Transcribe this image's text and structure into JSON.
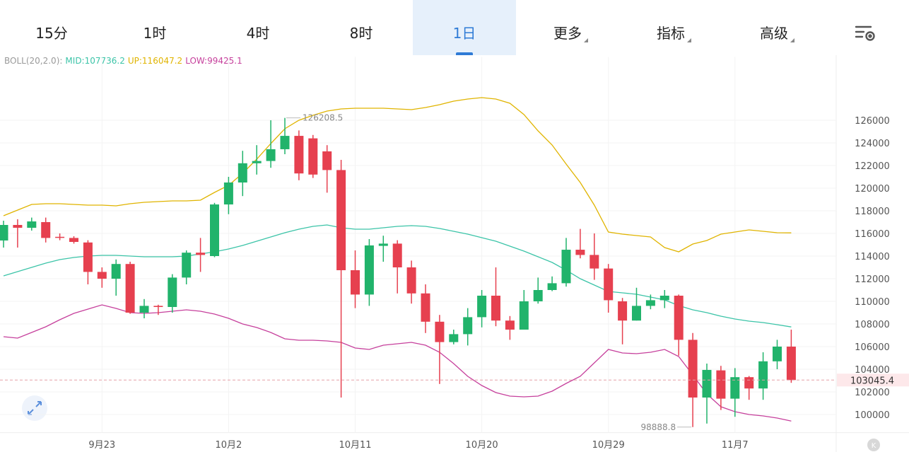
{
  "tabs": [
    "15分",
    "1时",
    "4时",
    "8时",
    "1日",
    "更多",
    "指标",
    "高级"
  ],
  "active_tab": 4,
  "dropdown_tabs": [
    5,
    6,
    7
  ],
  "chart_data": {
    "type": "candlestick",
    "indicator": "BOLL(20,2.0):",
    "categories": [
      null,
      null,
      null,
      null,
      null,
      null,
      null,
      "9月23",
      null,
      null,
      null,
      null,
      null,
      null,
      null,
      null,
      "10月2",
      null,
      null,
      null,
      null,
      null,
      null,
      null,
      null,
      "10月11",
      null,
      null,
      null,
      null,
      null,
      null,
      null,
      null,
      "10月20",
      null,
      null,
      null,
      null,
      null,
      null,
      null,
      null,
      "10月29",
      null,
      null,
      null,
      null,
      null,
      null,
      null,
      null,
      "11月7",
      null,
      null,
      null,
      null
    ],
    "open": [
      115375,
      116750,
      116500,
      117000,
      115700,
      115600,
      115200,
      112600,
      112000,
      113300,
      109000,
      109600,
      109500,
      112100,
      114300,
      114000,
      118560,
      120500,
      122200,
      122400,
      123440,
      124620,
      124400,
      123250,
      121600,
      112750,
      110600,
      114900,
      115100,
      113000,
      110700,
      108200,
      106400,
      107100,
      108600,
      110500,
      108300,
      107500,
      110000,
      111000,
      111600,
      114560,
      114100,
      112900,
      110000,
      108300,
      109600,
      110100,
      110500,
      106600,
      101500,
      103900,
      101400,
      103300,
      102300,
      104700,
      106000
    ],
    "close": [
      116750,
      116500,
      117060,
      115600,
      115650,
      115250,
      112600,
      112000,
      113300,
      109000,
      109600,
      109500,
      112100,
      114300,
      114100,
      118560,
      120500,
      122200,
      122400,
      123440,
      124620,
      121300,
      121200,
      121600,
      112750,
      110600,
      114940,
      115100,
      113000,
      110700,
      108200,
      106400,
      107100,
      108600,
      110500,
      108300,
      107500,
      110000,
      111000,
      111600,
      114560,
      114100,
      112900,
      110100,
      108300,
      109600,
      110100,
      110500,
      106600,
      101500,
      103940,
      101400,
      103300,
      102300,
      104700,
      106000,
      103045.4
    ],
    "high": [
      117125,
      117250,
      117400,
      117400,
      116000,
      115750,
      115400,
      113000,
      113700,
      113500,
      110200,
      109700,
      112400,
      114500,
      115600,
      118700,
      121000,
      123300,
      123800,
      126000,
      126208.5,
      125100,
      124700,
      123800,
      122500,
      114500,
      115500,
      115800,
      115400,
      113600,
      111500,
      108800,
      107500,
      109400,
      111000,
      113000,
      108700,
      111000,
      112100,
      112200,
      115600,
      116400,
      116000,
      113300,
      110300,
      111200,
      110600,
      111000,
      110600,
      107200,
      104500,
      104300,
      104100,
      103400,
      105500,
      106600,
      107500
    ],
    "low": [
      114750,
      114750,
      116250,
      115200,
      115400,
      115100,
      111500,
      111200,
      110500,
      108900,
      108500,
      108800,
      109000,
      111500,
      112600,
      113900,
      117700,
      119300,
      121200,
      121800,
      123000,
      120700,
      120900,
      119600,
      101500,
      109400,
      109600,
      113500,
      110700,
      109800,
      107200,
      102700,
      106200,
      106100,
      107700,
      107800,
      106600,
      107500,
      109800,
      110900,
      111300,
      113800,
      111900,
      109000,
      106200,
      108300,
      109300,
      109400,
      105200,
      98888.8,
      99200,
      100400,
      99800,
      101300,
      101300,
      104000,
      102800
    ],
    "up_color": "#21b36b",
    "down_color": "#e6404f",
    "boll": [
      {
        "label": "MID:107736.2",
        "color": "#3cc4a8",
        "values": [
          112250,
          112625,
          113000,
          113375,
          113687.5,
          113875,
          114000,
          114062.5,
          114062.5,
          114000,
          113937.5,
          113937.5,
          113937.5,
          114000,
          114187.5,
          114375,
          114625,
          114937.5,
          115312.5,
          115687.5,
          116062.5,
          116375,
          116625,
          116750,
          116500,
          116375,
          116375,
          116500,
          116625,
          116687.5,
          116625,
          116437.5,
          116187.5,
          115937.5,
          115625,
          115312.5,
          114875,
          114437.5,
          113937.5,
          113437.5,
          112750,
          112000,
          111437.5,
          110875,
          110750,
          110625,
          110375,
          110125,
          109625,
          109250,
          109000,
          108687.5,
          108437.5,
          108250,
          108125,
          107937.5,
          107736.2
        ]
      },
      {
        "label": "UP:116047.2",
        "color": "#e0b400",
        "values": [
          117562.5,
          118062.5,
          118562.5,
          118625,
          118625,
          118562.5,
          118500,
          118500,
          118437.5,
          118625,
          118750,
          118812.5,
          118875,
          118875,
          118937.5,
          119625,
          120250,
          121312.5,
          122562.5,
          123937.5,
          125250,
          126000,
          126437.5,
          126812.5,
          127000,
          127062.5,
          127062.5,
          127062.5,
          127000,
          126937.5,
          127125,
          127375,
          127687.5,
          127875,
          128000,
          127875,
          127500,
          126500,
          125062.5,
          123812.5,
          122125,
          120500,
          118500,
          116125,
          115937.5,
          115812.5,
          115687.5,
          114750,
          114375,
          115062.5,
          115375,
          115937.5,
          116125,
          116312.5,
          116187.5,
          116062.5,
          116047.2
        ]
      },
      {
        "label": "LOW:99425.1",
        "color": "#c6409c",
        "values": [
          106875,
          106750,
          107250,
          107750,
          108375,
          108937.5,
          109312.5,
          109687.5,
          109375,
          109000,
          108937.5,
          109000,
          109125,
          109250,
          109125,
          108875,
          108500,
          108000,
          107687.5,
          107250,
          106687.5,
          106562.5,
          106562.5,
          106500,
          106375,
          105875,
          105750,
          106125,
          106250,
          106375,
          106125,
          105500,
          104500,
          103375,
          102562.5,
          101937.5,
          101625,
          101562.5,
          101625,
          102062.5,
          102750,
          103375,
          104562.5,
          105750,
          105437.5,
          105375,
          105500,
          105750,
          105125,
          103500,
          101812.5,
          100687.5,
          100250,
          100000,
          99875,
          99687.5,
          99425.1
        ]
      }
    ],
    "ylim": [
      98400,
      131600
    ],
    "yticks": [
      100000,
      102000,
      104000,
      106000,
      108000,
      110000,
      112000,
      114000,
      116000,
      118000,
      120000,
      122000,
      124000,
      126000
    ],
    "grid": true
  }
}
